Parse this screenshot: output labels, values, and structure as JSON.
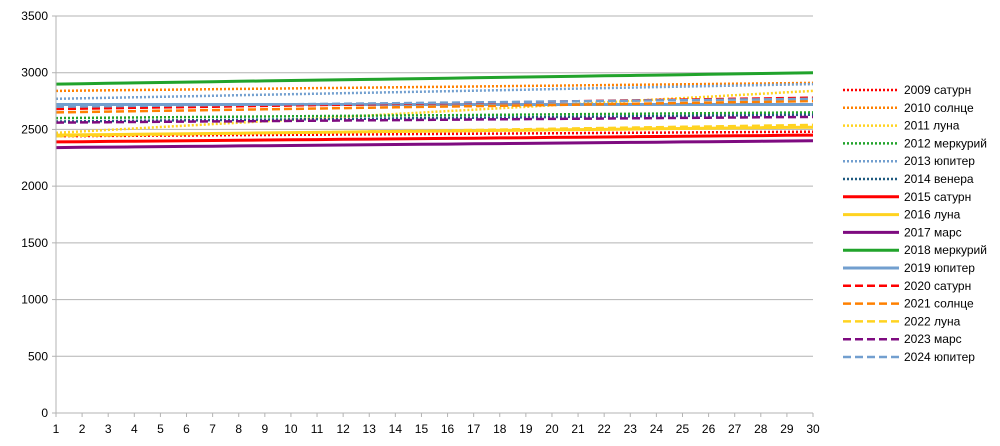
{
  "chart_data": {
    "type": "line",
    "title": "",
    "xlabel": "",
    "ylabel": "",
    "x": [
      1,
      2,
      3,
      4,
      5,
      6,
      7,
      8,
      9,
      10,
      11,
      12,
      13,
      14,
      15,
      16,
      17,
      18,
      19,
      20,
      21,
      22,
      23,
      24,
      25,
      26,
      27,
      28,
      29,
      30
    ],
    "x_tick_labels": [
      "1",
      "2",
      "3",
      "4",
      "5",
      "6",
      "7",
      "8",
      "9",
      "10",
      "11",
      "12",
      "13",
      "14",
      "15",
      "16",
      "17",
      "18",
      "19",
      "20",
      "21",
      "22",
      "23",
      "24",
      "25",
      "26",
      "27",
      "28",
      "29",
      "30"
    ],
    "ylim": [
      0,
      3500
    ],
    "y_ticks": [
      0,
      500,
      1000,
      1500,
      2000,
      2500,
      3000,
      3500
    ],
    "y_tick_labels": [
      "0",
      "500",
      "1000",
      "1500",
      "2000",
      "2500",
      "3000",
      "3500"
    ],
    "grid": "horizontal",
    "legend_position": "right",
    "series": [
      {
        "name": "2009 сатурн",
        "start": 2440,
        "end": 2480,
        "color": "#ff0000",
        "style": "dotted"
      },
      {
        "name": "2010 солнце",
        "start": 2840,
        "end": 2910,
        "color": "#ff8000",
        "style": "dotted"
      },
      {
        "name": "2011 луна",
        "start": 2470,
        "end": 2840,
        "color": "#ffd320",
        "style": "dotted"
      },
      {
        "name": "2012 меркурий",
        "start": 2600,
        "end": 2650,
        "color": "#21a32b",
        "style": "dotted"
      },
      {
        "name": "2013 юпитер",
        "start": 2770,
        "end": 2900,
        "color": "#729fcf",
        "style": "dotted"
      },
      {
        "name": "2014 венера",
        "start": 2570,
        "end": 2630,
        "color": "#1f5a80",
        "style": "dotted"
      },
      {
        "name": "2015 сатурн",
        "start": 2390,
        "end": 2450,
        "color": "#ff0000",
        "style": "solid"
      },
      {
        "name": "2016 луна",
        "start": 2450,
        "end": 2520,
        "color": "#ffd320",
        "style": "solid"
      },
      {
        "name": "2017 марс",
        "start": 2340,
        "end": 2400,
        "color": "#7e0b80",
        "style": "solid"
      },
      {
        "name": "2018 меркурий",
        "start": 2900,
        "end": 3000,
        "color": "#21a32b",
        "style": "solid"
      },
      {
        "name": "2019 юпитер",
        "start": 2720,
        "end": 2720,
        "color": "#729fcf",
        "style": "solid"
      },
      {
        "name": "2020 сатурн",
        "start": 2680,
        "end": 2780,
        "color": "#ff0000",
        "style": "dashed"
      },
      {
        "name": "2021 солнце",
        "start": 2650,
        "end": 2750,
        "color": "#ff8000",
        "style": "dashed"
      },
      {
        "name": "2022 луна",
        "start": 2440,
        "end": 2540,
        "color": "#ffd320",
        "style": "dashed"
      },
      {
        "name": "2023 марс",
        "start": 2560,
        "end": 2610,
        "color": "#7e0b80",
        "style": "dashed"
      },
      {
        "name": "2024 юпитер",
        "start": 2700,
        "end": 2770,
        "color": "#729fcf",
        "style": "dashed"
      }
    ]
  }
}
